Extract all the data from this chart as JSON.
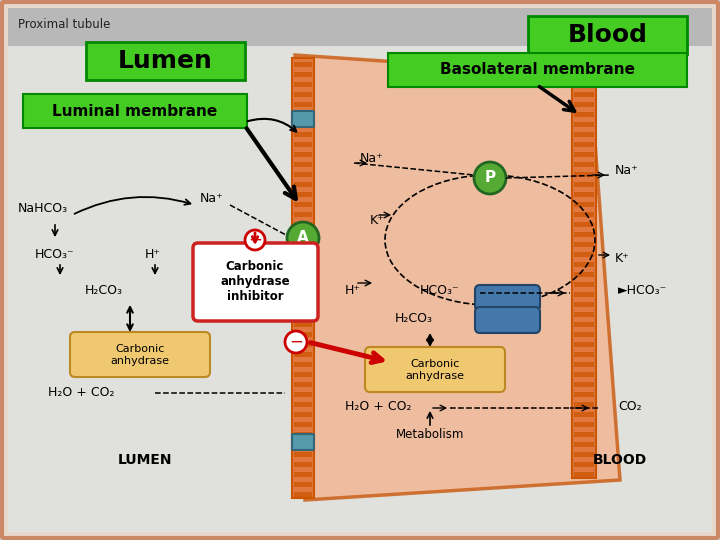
{
  "bg_color": "#d8d8d8",
  "outer_bg": "#e8e8e8",
  "cell_color": "#f0b090",
  "cell_outline": "#cc6622",
  "title": "Proximal tubule",
  "labels": {
    "lumen": "Lumen",
    "luminal_membrane": "Luminal membrane",
    "blood": "Blood",
    "basolateral": "Basolateral membrane",
    "nahco3": "NaHCO₃",
    "na_plus_left": "Na⁺",
    "hco3_left": "HCO₃⁻",
    "h_plus_left": "H⁺",
    "h2co3_left": "H₂CO₃",
    "h2o_co2_left": "H₂O + CO₂",
    "carbonic_anhydrase_left": "Carbonic\nanhydrase",
    "carbonic_anhydrase_inhibitor": "Carbonic\nanhydrase\ninhibitor",
    "na_plus_top": "Na⁺",
    "na_plus_right": "Na⁺",
    "k_plus_cell": "K⁺",
    "k_plus_right": "K⁺",
    "h_plus_cell": "H⁺",
    "hco3_cell": "HCO₃⁻",
    "hco3_right": "►HCO₃⁻",
    "h2co3_cell": "H₂CO₃",
    "h2o_co2_cell": "H₂O + CO₂",
    "co2_right": "CO₂",
    "carbonic_anhydrase_cell": "Carbonic\nanhydrase",
    "metabolism": "Metabolism",
    "lumen_label": "LUMEN",
    "blood_label": "BLOOD"
  },
  "green_box_color": "#44cc22",
  "green_border_color": "#008800",
  "inhibitor_fill": "#ffffff",
  "inhibitor_border": "#cc2222",
  "transporter_color": "#55aa33",
  "membrane_color": "#e07840",
  "membrane_stripe": "#cc5500",
  "teal_color": "#5599aa",
  "blue_cap_color": "#4477aa",
  "arrow_color": "#000000",
  "red_arrow": "#cc0000"
}
